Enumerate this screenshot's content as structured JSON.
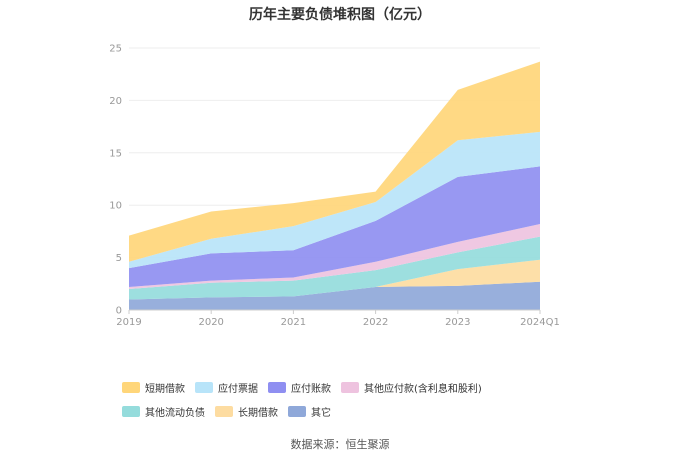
{
  "chart_data": {
    "type": "area",
    "stacked": true,
    "title": "历年主要负债堆积图（亿元）",
    "categories": [
      "2019",
      "2020",
      "2021",
      "2022",
      "2023",
      "2024Q1"
    ],
    "ylim": [
      0,
      25
    ],
    "yticks": [
      0,
      5,
      10,
      15,
      20,
      25
    ],
    "grid": true,
    "legend_position": "bottom",
    "series": [
      {
        "name": "其它",
        "color": "#8fa8d9",
        "values": [
          1.0,
          1.2,
          1.3,
          2.2,
          2.3,
          2.7
        ]
      },
      {
        "name": "长期借款",
        "color": "#fddca1",
        "values": [
          0.0,
          0.0,
          0.0,
          0.0,
          1.6,
          2.1
        ]
      },
      {
        "name": "其他流动负债",
        "color": "#95dcdc",
        "values": [
          1.0,
          1.4,
          1.5,
          1.6,
          1.6,
          2.2
        ]
      },
      {
        "name": "其他应付款(含利息和股利)",
        "color": "#eec3df",
        "values": [
          0.2,
          0.2,
          0.3,
          0.8,
          1.0,
          1.2
        ]
      },
      {
        "name": "应付账款",
        "color": "#8f8ff1",
        "values": [
          1.8,
          2.6,
          2.6,
          3.9,
          6.2,
          5.5
        ]
      },
      {
        "name": "应付票据",
        "color": "#b8e4f9",
        "values": [
          0.6,
          1.4,
          2.3,
          1.8,
          3.5,
          3.3
        ]
      },
      {
        "name": "短期借款",
        "color": "#ffd67a",
        "values": [
          2.5,
          2.6,
          2.2,
          1.0,
          4.8,
          6.7
        ]
      }
    ],
    "legend_order": [
      "短期借款",
      "应付票据",
      "应付账款",
      "其他应付款(含利息和股利)",
      "其他流动负债",
      "长期借款",
      "其它"
    ]
  },
  "source": "数据来源：恒生聚源",
  "colors": {
    "axis": "#cccccc",
    "grid": "#eeeeee",
    "tick_text": "#999999"
  }
}
